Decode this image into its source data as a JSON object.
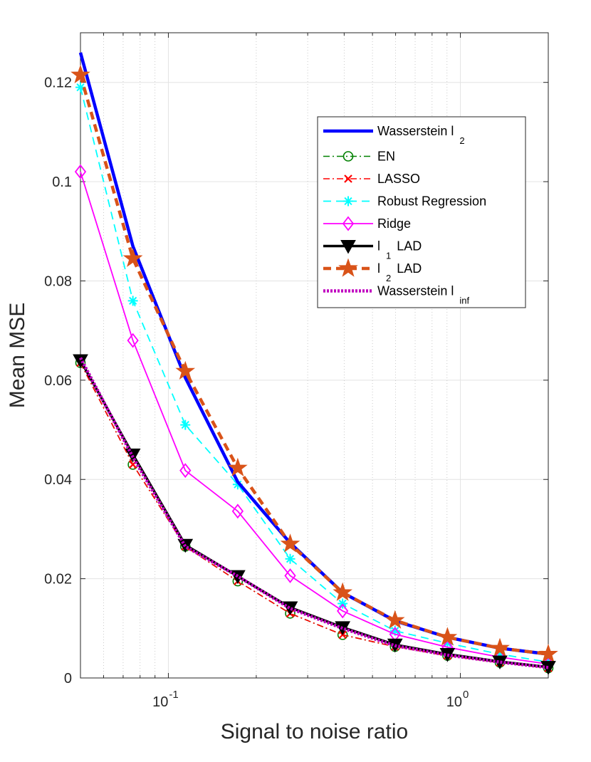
{
  "chart_data": {
    "type": "line",
    "xscale": "log",
    "xlabel": "Signal to noise ratio",
    "ylabel": "Mean MSE",
    "xlim": [
      0.05,
      2.0
    ],
    "ylim": [
      0,
      0.13
    ],
    "grid": true,
    "legend_position": "top-right",
    "yticks": [
      0,
      0.02,
      0.04,
      0.06,
      0.08,
      0.1,
      0.12
    ],
    "ytick_labels": [
      "0",
      "0.02",
      "0.04",
      "0.06",
      "0.08",
      "0.1",
      "0.12"
    ],
    "xticks_major": [
      {
        "value": 0.1,
        "base": "10",
        "exp": "-1"
      },
      {
        "value": 1.0,
        "base": "10",
        "exp": "0"
      }
    ],
    "x": [
      0.05,
      0.0756,
      0.1143,
      0.1728,
      0.2613,
      0.3951,
      0.5973,
      0.9031,
      1.3654,
      2.0
    ],
    "series": [
      {
        "name": "Wasserstein l",
        "sub": "2",
        "color": "#0000ff",
        "marker": "none",
        "line": "solid",
        "values": [
          0.126,
          0.087,
          0.0605,
          0.0395,
          0.0272,
          0.0172,
          0.0115,
          0.0082,
          0.006,
          0.0048
        ]
      },
      {
        "name": "EN",
        "sub": "",
        "color": "#008000",
        "marker": "circle",
        "line": "dashdot",
        "values": [
          0.0635,
          0.043,
          0.0265,
          0.0195,
          0.013,
          0.0087,
          0.0063,
          0.0045,
          0.0031,
          0.002
        ]
      },
      {
        "name": "LASSO",
        "sub": "",
        "color": "#ff0000",
        "marker": "x",
        "line": "dashdot",
        "values": [
          0.0635,
          0.043,
          0.0265,
          0.0195,
          0.013,
          0.0087,
          0.0063,
          0.0045,
          0.0031,
          0.002
        ]
      },
      {
        "name": "Robust Regression",
        "sub": "",
        "color": "#00ffff",
        "marker": "asterisk",
        "line": "dashed",
        "values": [
          0.119,
          0.076,
          0.051,
          0.039,
          0.024,
          0.015,
          0.0095,
          0.007,
          0.0048,
          0.0032
        ]
      },
      {
        "name": "Ridge",
        "sub": "",
        "color": "#ff00ff",
        "marker": "diamond",
        "line": "solid",
        "values": [
          0.102,
          0.068,
          0.0418,
          0.0336,
          0.0206,
          0.0135,
          0.0088,
          0.0062,
          0.0042,
          0.0028
        ]
      },
      {
        "name": "l",
        "sub": "1",
        "suffix": "LAD",
        "color": "#000000",
        "marker": "triangle-down",
        "line": "solid",
        "values": [
          0.064,
          0.045,
          0.0268,
          0.0205,
          0.0142,
          0.0102,
          0.0067,
          0.0048,
          0.0033,
          0.0022
        ]
      },
      {
        "name": "l",
        "sub": "2",
        "suffix": "LAD",
        "color": "#d95319",
        "marker": "star",
        "line": "dashed",
        "values": [
          0.1215,
          0.0845,
          0.0618,
          0.0423,
          0.027,
          0.0172,
          0.0116,
          0.0082,
          0.006,
          0.0048
        ]
      },
      {
        "name": "Wasserstein l",
        "sub": "inf",
        "color": "#c000c0",
        "marker": "none",
        "line": "dotted",
        "values": [
          0.0645,
          0.0445,
          0.0265,
          0.0205,
          0.014,
          0.01,
          0.0065,
          0.0046,
          0.0032,
          0.0021
        ]
      }
    ]
  }
}
